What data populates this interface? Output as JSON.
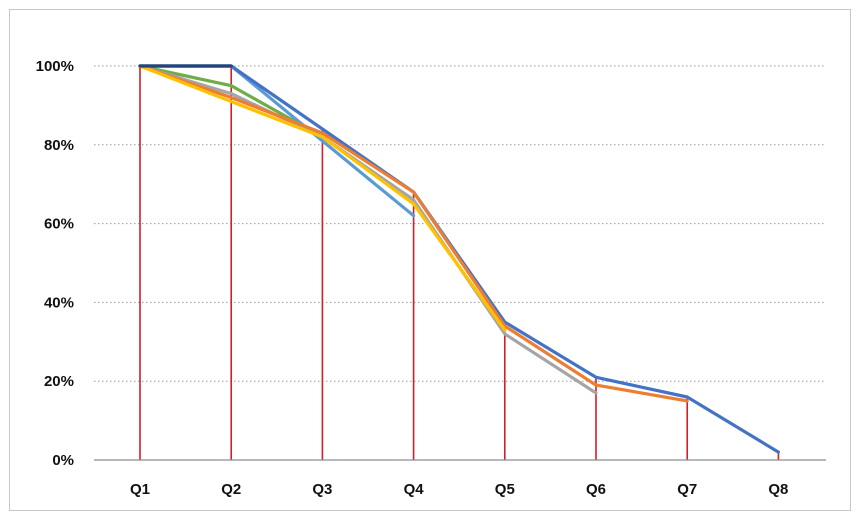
{
  "chart_data": {
    "type": "line",
    "title": "",
    "xlabel": "",
    "ylabel": "",
    "categories": [
      "Q1",
      "Q2",
      "Q3",
      "Q4",
      "Q5",
      "Q6",
      "Q7",
      "Q8"
    ],
    "ylim": [
      0,
      100
    ],
    "y_ticks": [
      0,
      20,
      40,
      60,
      80,
      100
    ],
    "y_tick_labels": [
      "0%",
      "20%",
      "40%",
      "60%",
      "80%",
      "100%"
    ],
    "grid": "horizontal dotted",
    "legend": "none",
    "drop_lines": {
      "color": "#d0202a",
      "to_value_of": "max series value per category"
    },
    "series": [
      {
        "color": "#5b9bd5",
        "values": [
          100,
          100,
          81,
          62,
          null,
          null,
          null,
          null
        ]
      },
      {
        "color": "#70ad47",
        "values": [
          100,
          95,
          82,
          66,
          null,
          null,
          null,
          null
        ]
      },
      {
        "color": "#a5a5a5",
        "values": [
          100,
          93,
          82,
          66,
          32,
          17,
          null,
          null
        ]
      },
      {
        "color": "#4472c4",
        "values": [
          100,
          100,
          84,
          68,
          35,
          21,
          16,
          2
        ]
      },
      {
        "color": "#ed7d31",
        "values": [
          100,
          92,
          83,
          68,
          34,
          19,
          15,
          null
        ]
      },
      {
        "color": "#ffc000",
        "values": [
          100,
          91,
          82,
          65,
          33,
          null,
          null,
          null
        ]
      },
      {
        "color": "#264478",
        "values": [
          100,
          100,
          null,
          null,
          null,
          null,
          null,
          null
        ]
      }
    ]
  }
}
